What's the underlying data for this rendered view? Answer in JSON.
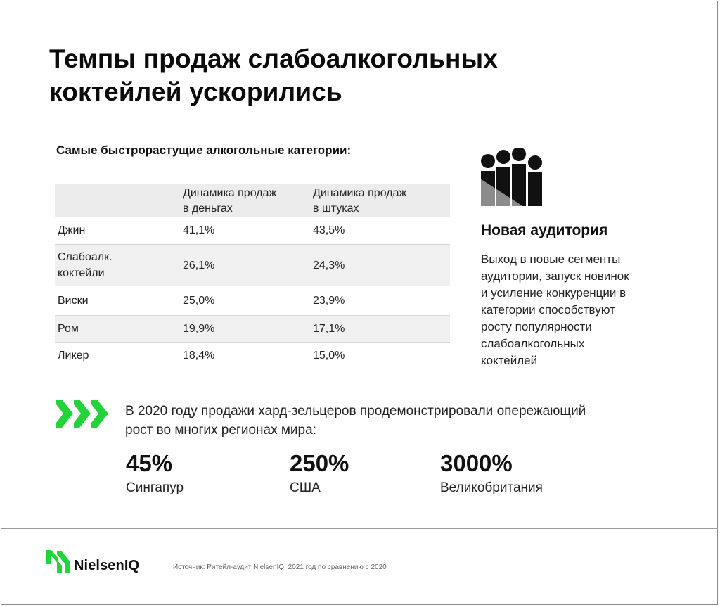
{
  "title": {
    "line1": "Темпы продаж слабоалкогольных",
    "line2": "коктейлей ускорились"
  },
  "table": {
    "caption": "Самые быстрорастущие алкогольные категории:",
    "headers": {
      "category": "",
      "money_line1": "Динамика продаж",
      "money_line2": "в деньгах",
      "units_line1": "Динамика продаж",
      "units_line2": "в штуках"
    },
    "rows": [
      {
        "category_line1": "Джин",
        "category_line2": "",
        "money": "41,1%",
        "units": "43,5%"
      },
      {
        "category_line1": "Слабоалк.",
        "category_line2": "коктейли",
        "money": "26,1%",
        "units": "24,3%"
      },
      {
        "category_line1": "Виски",
        "category_line2": "",
        "money": "25,0%",
        "units": "23,9%"
      },
      {
        "category_line1": "Ром",
        "category_line2": "",
        "money": "19,9%",
        "units": "17,1%"
      },
      {
        "category_line1": "Ликер",
        "category_line2": "",
        "money": "18,4%",
        "units": "15,0%"
      }
    ]
  },
  "audience": {
    "icon": "people-icon",
    "title": "Новая аудитория",
    "text_lines": [
      "Выход в новые сегменты",
      "аудитории, запуск новинок",
      "и усиление конкуренции в",
      "категории способствуют",
      "росту популярности",
      "слабоалкогольных",
      "коктейлей"
    ]
  },
  "hard_seltzer": {
    "icon": "triple-chevron-icon",
    "text_line1": "В 2020 году продажи хард-зельцеров продемонстрировали опережающий",
    "text_line2": "рост во многих регионах мира:",
    "stats": [
      {
        "value": "45%",
        "label": "Сингапур"
      },
      {
        "value": "250%",
        "label": "США"
      },
      {
        "value": "3000%",
        "label": "Великобритания"
      }
    ]
  },
  "footer": {
    "logo_text": "NielsenIQ",
    "source": "Источник: Ритейл-аудит NielsenIQ, 2021 год по сравнению с 2020"
  },
  "colors": {
    "accent_green": "#22d43a",
    "dark": "#111111",
    "icon_gray": "#8c8c8c"
  }
}
